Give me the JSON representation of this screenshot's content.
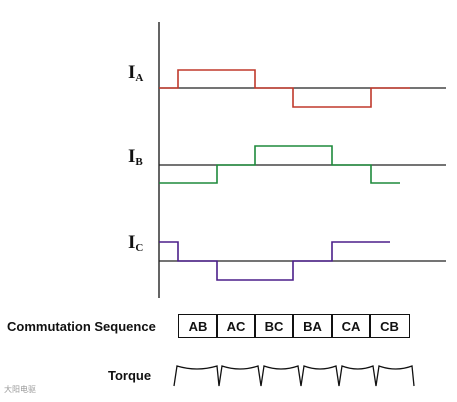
{
  "signals": [
    {
      "letter": "I",
      "sub": "A",
      "color": "#c0392b"
    },
    {
      "letter": "I",
      "sub": "B",
      "color": "#1e8a3c"
    },
    {
      "letter": "I",
      "sub": "C",
      "color": "#4b1f8a"
    }
  ],
  "commutation": {
    "label": "Commutation Sequence",
    "steps": [
      "AB",
      "AC",
      "BC",
      "BA",
      "CA",
      "CB"
    ]
  },
  "torque": {
    "label": "Torque"
  },
  "watermark": {
    "text": "大阳电驱"
  }
}
